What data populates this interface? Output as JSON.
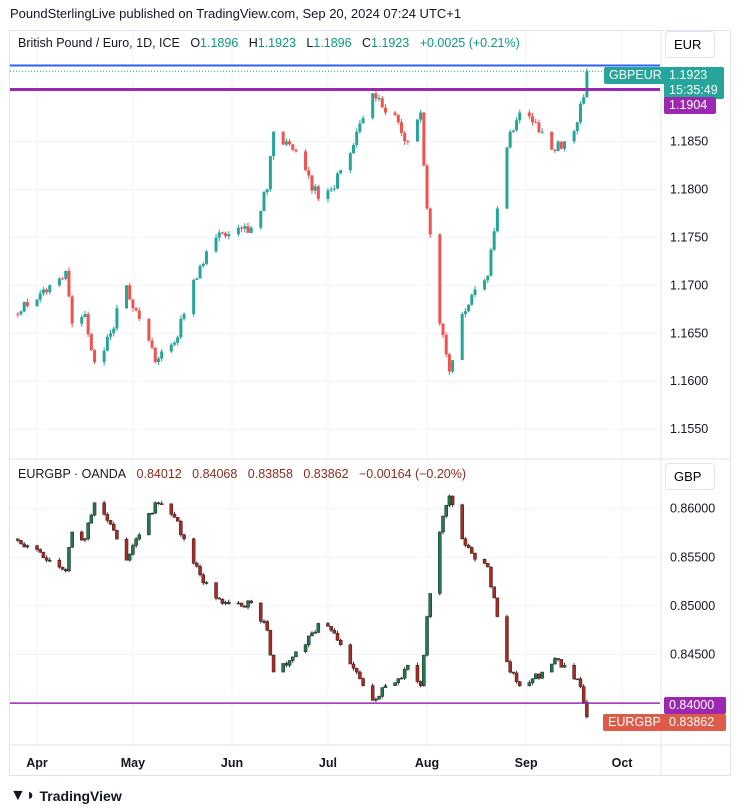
{
  "header": {
    "published": "PoundSterlingLive published on TradingView.com, Sep 20, 2024 07:24 UTC+1"
  },
  "footer": {
    "brand": "TradingView"
  },
  "colors": {
    "up": "#26a69a",
    "down": "#ef5350",
    "up_dark": "#1e7b4a",
    "down_dark": "#b2281f",
    "purple": "#9c27b0",
    "blue": "#2962ff"
  },
  "chart_data": [
    {
      "type": "candlestick",
      "title": "British Pound / Euro, 1D, ICE",
      "symbol": "GBPEUR",
      "currency": "EUR",
      "ohlc_label": {
        "o_label": "O",
        "o": "1.1896",
        "h_label": "H",
        "h": "1.1923",
        "l_label": "L",
        "l": "1.1896",
        "c_label": "C",
        "c": "1.1923",
        "change": "+0.0025 (+0.21%)"
      },
      "last_price": "1.1923",
      "countdown": "15:35:49",
      "hline_label": "1.1904",
      "hline": 1.1904,
      "hline2": 1.1929,
      "ylim": [
        1.152,
        1.1965
      ],
      "yticks": [
        "1.1850",
        "1.1800",
        "1.1750",
        "1.1700",
        "1.1650",
        "1.1600",
        "1.1550"
      ],
      "dates": [
        "2024-03-25",
        "2024-04-01",
        "2024-04-05",
        "2024-04-10",
        "2024-04-12",
        "2024-04-16",
        "2024-04-19",
        "2024-04-24",
        "2024-04-29",
        "2024-05-03",
        "2024-05-08",
        "2024-05-14",
        "2024-05-17",
        "2024-05-22",
        "2024-05-28",
        "2024-06-03",
        "2024-06-07",
        "2024-06-12",
        "2024-06-14",
        "2024-06-18",
        "2024-06-24",
        "2024-06-28",
        "2024-07-02",
        "2024-07-05",
        "2024-07-10",
        "2024-07-15",
        "2024-07-17",
        "2024-07-19",
        "2024-07-23",
        "2024-07-26",
        "2024-07-30",
        "2024-08-01",
        "2024-08-05",
        "2024-08-08",
        "2024-08-12",
        "2024-08-15",
        "2024-08-20",
        "2024-08-23",
        "2024-08-27",
        "2024-08-30",
        "2024-09-03",
        "2024-09-06",
        "2024-09-10",
        "2024-09-13",
        "2024-09-17",
        "2024-09-19",
        "2024-09-20"
      ],
      "close": [
        1.167,
        1.1685,
        1.17,
        1.1715,
        1.166,
        1.167,
        1.162,
        1.165,
        1.17,
        1.1665,
        1.162,
        1.164,
        1.167,
        1.172,
        1.1755,
        1.176,
        1.176,
        1.18,
        1.186,
        1.185,
        1.182,
        1.179,
        1.18,
        1.182,
        1.186,
        1.19,
        1.1895,
        1.188,
        1.187,
        1.185,
        1.188,
        1.178,
        1.166,
        1.161,
        1.167,
        1.169,
        1.171,
        1.178,
        1.186,
        1.188,
        1.187,
        1.186,
        1.184,
        1.185,
        1.187,
        1.1896,
        1.1923
      ]
    },
    {
      "type": "candlestick",
      "title": "EURGBP · OANDA",
      "symbol": "EURGBP",
      "currency": "GBP",
      "ohlc_label": {
        "o": "0.84012",
        "h": "0.84068",
        "l": "0.83858",
        "c": "0.83862",
        "change": "−0.00164 (−0.20%)"
      },
      "last_price": "0.83862",
      "hline_label": "0.84000",
      "hline": 0.84,
      "ylim": [
        0.8357,
        0.865
      ],
      "yticks": [
        "0.86000",
        "0.85500",
        "0.85000",
        "0.84500"
      ],
      "close": [
        0.8569,
        0.8558,
        0.8547,
        0.8536,
        0.8576,
        0.8569,
        0.8606,
        0.8584,
        0.8547,
        0.8573,
        0.8606,
        0.8591,
        0.8569,
        0.8532,
        0.8507,
        0.8503,
        0.8503,
        0.8475,
        0.8432,
        0.8439,
        0.846,
        0.8482,
        0.8475,
        0.846,
        0.8432,
        0.8403,
        0.8407,
        0.8418,
        0.8425,
        0.8439,
        0.8418,
        0.8489,
        0.8576,
        0.8613,
        0.8569,
        0.8554,
        0.854,
        0.8489,
        0.8432,
        0.8418,
        0.8425,
        0.8432,
        0.8446,
        0.8439,
        0.8425,
        0.8401,
        0.8386
      ]
    }
  ],
  "time_axis": {
    "labels": [
      "Apr",
      "May",
      "Jun",
      "Jul",
      "Aug",
      "Sep",
      "Oct"
    ],
    "dates": [
      "2024-04-01",
      "2024-05-01",
      "2024-06-01",
      "2024-07-01",
      "2024-08-01",
      "2024-09-01",
      "2024-10-01"
    ]
  }
}
